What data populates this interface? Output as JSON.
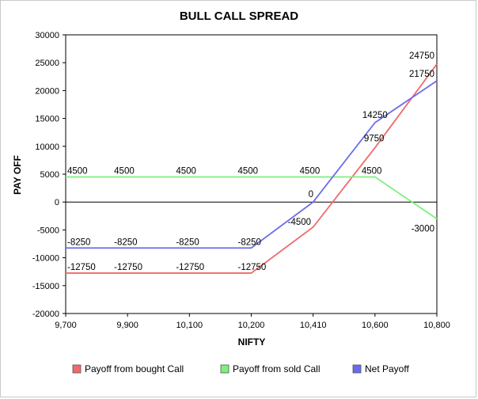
{
  "chart_data": {
    "type": "line",
    "title": "BULL CALL SPREAD",
    "xlabel": "NIFTY",
    "ylabel": "PAY OFF",
    "categories": [
      "9,700",
      "9,900",
      "10,100",
      "10,200",
      "10,410",
      "10,600",
      "10,800"
    ],
    "ylim": [
      -20000,
      30000
    ],
    "yticks": [
      -20000,
      -15000,
      -10000,
      -5000,
      0,
      5000,
      10000,
      15000,
      20000,
      25000,
      30000
    ],
    "grid": false,
    "legend_position": "bottom",
    "series": [
      {
        "name": "Payoff from bought Call",
        "color": "#f06a6a",
        "values": [
          -12750,
          -12750,
          -12750,
          -12750,
          -4500,
          9750,
          24750
        ],
        "labels": [
          "-12750",
          "-12750",
          "-12750",
          "-12750",
          "-4500",
          "9750",
          "24750"
        ]
      },
      {
        "name": "Payoff from sold Call",
        "color": "#7ef07e",
        "values": [
          4500,
          4500,
          4500,
          4500,
          4500,
          4500,
          -3000
        ],
        "labels": [
          "4500",
          "4500",
          "4500",
          "4500",
          "4500",
          "4500",
          "-3000"
        ]
      },
      {
        "name": "Net Payoff",
        "color": "#6b6bee",
        "values": [
          -8250,
          -8250,
          -8250,
          -8250,
          0,
          14250,
          21750
        ],
        "labels": [
          "-8250",
          "-8250",
          "-8250",
          "-8250",
          "0",
          "14250",
          "21750"
        ]
      }
    ]
  }
}
